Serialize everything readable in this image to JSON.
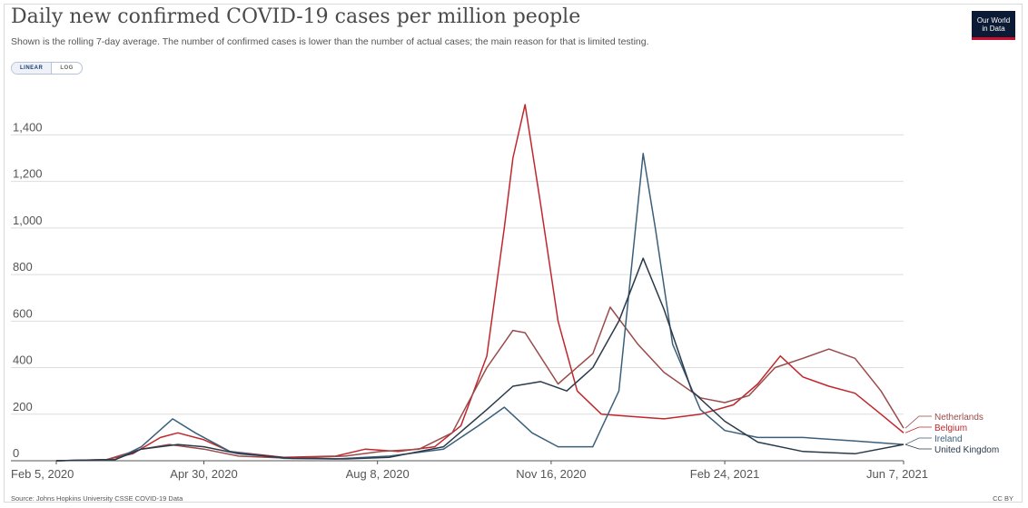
{
  "header": {
    "title": "Daily new confirmed COVID-19 cases per million people",
    "subtitle": "Shown is the rolling 7-day average. The number of confirmed cases is lower than the number of actual cases; the main reason for that is limited testing.",
    "logo_line1": "Our World",
    "logo_line2": "in Data"
  },
  "scale_toggle": {
    "linear_label": "LINEAR",
    "log_label": "LOG",
    "selected": "LINEAR"
  },
  "footer": {
    "source": "Source: Johns Hopkins University CSSE COVID-19 Data",
    "license": "CC BY"
  },
  "colors": {
    "Netherlands": "#9a4a4a",
    "Belgium": "#c0272d",
    "Ireland": "#3b5f7a",
    "United Kingdom": "#2a3a4a",
    "grid": "#dddddd",
    "axis": "#555555"
  },
  "chart_data": {
    "type": "line",
    "title": "Daily new confirmed COVID-19 cases per million people",
    "xlabel": "",
    "ylabel": "",
    "x_axis": {
      "type": "date",
      "range": [
        "2020-02-05",
        "2021-06-07"
      ],
      "tick_labels": [
        "Feb 5, 2020",
        "Apr 30, 2020",
        "Aug 8, 2020",
        "Nov 16, 2020",
        "Feb 24, 2021",
        "Jun 7, 2021"
      ],
      "ticks": [
        "2020-02-05",
        "2020-04-30",
        "2020-08-08",
        "2020-11-16",
        "2021-02-24",
        "2021-06-07"
      ]
    },
    "y_axis": {
      "range": [
        0,
        1550
      ],
      "ticks": [
        0,
        200,
        400,
        600,
        800,
        1000,
        1200,
        1400
      ],
      "tick_labels": [
        "0",
        "200",
        "400",
        "600",
        "800",
        "1,000",
        "1,200",
        "1,400"
      ]
    },
    "grid": true,
    "legend": "right, inline labels at line ends",
    "series": [
      {
        "name": "Belgium",
        "points": [
          [
            "2020-02-05",
            0
          ],
          [
            "2020-03-05",
            5
          ],
          [
            "2020-03-20",
            30
          ],
          [
            "2020-04-05",
            100
          ],
          [
            "2020-04-15",
            120
          ],
          [
            "2020-04-30",
            90
          ],
          [
            "2020-05-15",
            40
          ],
          [
            "2020-06-15",
            15
          ],
          [
            "2020-07-15",
            20
          ],
          [
            "2020-08-01",
            50
          ],
          [
            "2020-08-20",
            40
          ],
          [
            "2020-09-10",
            60
          ],
          [
            "2020-09-25",
            150
          ],
          [
            "2020-10-10",
            450
          ],
          [
            "2020-10-20",
            1000
          ],
          [
            "2020-10-25",
            1300
          ],
          [
            "2020-11-01",
            1530
          ],
          [
            "2020-11-10",
            1100
          ],
          [
            "2020-11-20",
            600
          ],
          [
            "2020-12-01",
            300
          ],
          [
            "2020-12-15",
            200
          ],
          [
            "2021-01-01",
            190
          ],
          [
            "2021-01-20",
            180
          ],
          [
            "2021-02-10",
            200
          ],
          [
            "2021-03-01",
            240
          ],
          [
            "2021-03-15",
            330
          ],
          [
            "2021-03-28",
            450
          ],
          [
            "2021-04-10",
            360
          ],
          [
            "2021-04-25",
            320
          ],
          [
            "2021-05-10",
            290
          ],
          [
            "2021-05-25",
            200
          ],
          [
            "2021-06-07",
            120
          ]
        ]
      },
      {
        "name": "Netherlands",
        "points": [
          [
            "2020-02-05",
            0
          ],
          [
            "2020-03-05",
            5
          ],
          [
            "2020-03-25",
            50
          ],
          [
            "2020-04-10",
            70
          ],
          [
            "2020-04-30",
            50
          ],
          [
            "2020-05-20",
            20
          ],
          [
            "2020-06-20",
            10
          ],
          [
            "2020-07-20",
            20
          ],
          [
            "2020-08-10",
            40
          ],
          [
            "2020-09-01",
            50
          ],
          [
            "2020-09-20",
            120
          ],
          [
            "2020-10-10",
            400
          ],
          [
            "2020-10-25",
            560
          ],
          [
            "2020-11-01",
            550
          ],
          [
            "2020-11-20",
            330
          ],
          [
            "2020-12-10",
            460
          ],
          [
            "2020-12-20",
            660
          ],
          [
            "2021-01-05",
            500
          ],
          [
            "2021-01-20",
            380
          ],
          [
            "2021-02-10",
            270
          ],
          [
            "2021-02-24",
            250
          ],
          [
            "2021-03-10",
            280
          ],
          [
            "2021-03-25",
            400
          ],
          [
            "2021-04-10",
            440
          ],
          [
            "2021-04-25",
            480
          ],
          [
            "2021-05-10",
            440
          ],
          [
            "2021-05-25",
            300
          ],
          [
            "2021-06-07",
            140
          ]
        ]
      },
      {
        "name": "Ireland",
        "points": [
          [
            "2020-02-05",
            0
          ],
          [
            "2020-03-10",
            5
          ],
          [
            "2020-03-25",
            60
          ],
          [
            "2020-04-12",
            180
          ],
          [
            "2020-04-25",
            120
          ],
          [
            "2020-05-15",
            40
          ],
          [
            "2020-06-15",
            10
          ],
          [
            "2020-07-15",
            8
          ],
          [
            "2020-08-15",
            20
          ],
          [
            "2020-09-15",
            50
          ],
          [
            "2020-10-05",
            150
          ],
          [
            "2020-10-20",
            230
          ],
          [
            "2020-11-05",
            120
          ],
          [
            "2020-11-20",
            60
          ],
          [
            "2020-12-10",
            60
          ],
          [
            "2020-12-25",
            300
          ],
          [
            "2021-01-08",
            1320
          ],
          [
            "2021-01-15",
            1000
          ],
          [
            "2021-01-25",
            500
          ],
          [
            "2021-02-10",
            220
          ],
          [
            "2021-02-24",
            130
          ],
          [
            "2021-03-15",
            100
          ],
          [
            "2021-04-10",
            100
          ],
          [
            "2021-05-10",
            85
          ],
          [
            "2021-06-07",
            70
          ]
        ]
      },
      {
        "name": "United Kingdom",
        "points": [
          [
            "2020-02-05",
            0
          ],
          [
            "2020-03-10",
            5
          ],
          [
            "2020-03-25",
            50
          ],
          [
            "2020-04-15",
            70
          ],
          [
            "2020-04-30",
            60
          ],
          [
            "2020-05-20",
            30
          ],
          [
            "2020-06-20",
            10
          ],
          [
            "2020-07-20",
            8
          ],
          [
            "2020-08-15",
            15
          ],
          [
            "2020-09-15",
            60
          ],
          [
            "2020-10-10",
            220
          ],
          [
            "2020-10-25",
            320
          ],
          [
            "2020-11-10",
            340
          ],
          [
            "2020-11-25",
            300
          ],
          [
            "2020-12-10",
            400
          ],
          [
            "2020-12-25",
            600
          ],
          [
            "2021-01-08",
            870
          ],
          [
            "2021-01-20",
            650
          ],
          [
            "2021-02-05",
            300
          ],
          [
            "2021-02-24",
            170
          ],
          [
            "2021-03-15",
            80
          ],
          [
            "2021-04-10",
            40
          ],
          [
            "2021-05-10",
            30
          ],
          [
            "2021-06-07",
            70
          ]
        ]
      }
    ]
  }
}
